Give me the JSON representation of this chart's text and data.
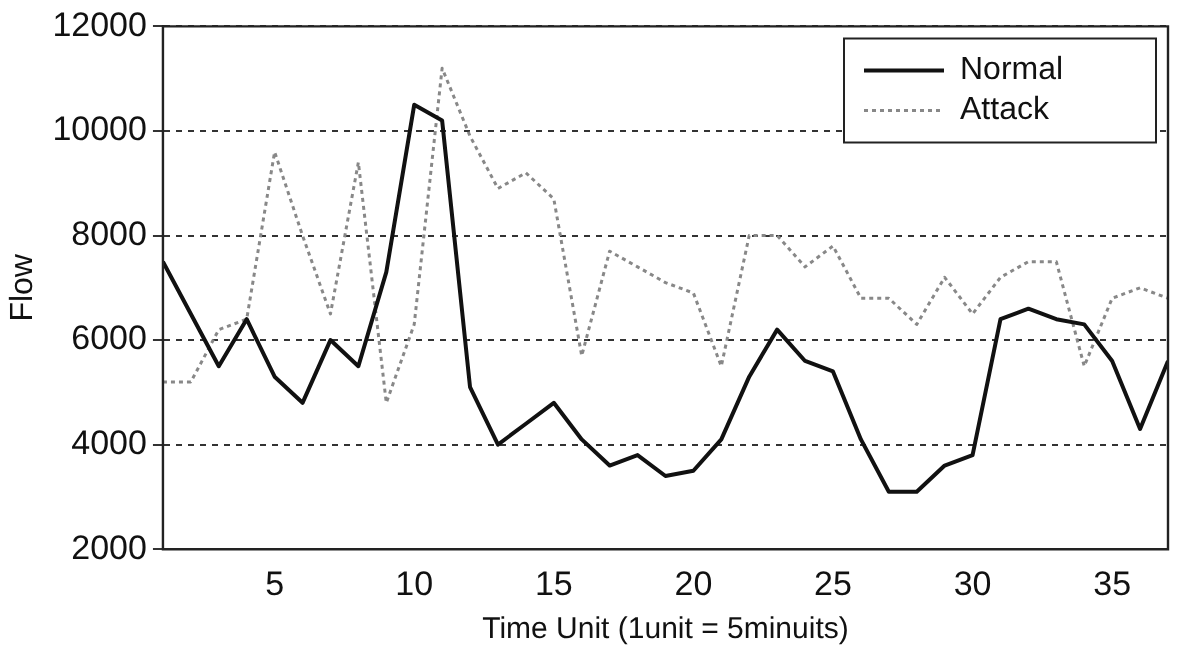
{
  "chart_data": {
    "type": "line",
    "xlabel": "Time Unit (1unit = 5minuits)",
    "ylabel": "Flow",
    "x": [
      1,
      2,
      3,
      4,
      5,
      6,
      7,
      8,
      9,
      10,
      11,
      12,
      13,
      14,
      15,
      16,
      17,
      18,
      19,
      20,
      21,
      22,
      23,
      24,
      25,
      26,
      27,
      28,
      29,
      30,
      31,
      32,
      33,
      34,
      35,
      36,
      37
    ],
    "series": [
      {
        "name": "Normal",
        "color": "#111111",
        "line_style": "solid",
        "values": [
          7500,
          6500,
          5500,
          6400,
          5300,
          4800,
          6000,
          5500,
          7300,
          10500,
          10200,
          5100,
          4000,
          4400,
          4800,
          4100,
          3600,
          3800,
          3400,
          3500,
          4100,
          5300,
          6200,
          5600,
          5400,
          4100,
          3100,
          3100,
          3600,
          3800,
          6400,
          6600,
          6400,
          6300,
          5600,
          4300,
          5600
        ]
      },
      {
        "name": "Attack",
        "color": "#888888",
        "line_style": "dotted",
        "values": [
          5200,
          5200,
          6200,
          6400,
          9600,
          8000,
          6500,
          9400,
          4800,
          6300,
          11200,
          9900,
          8900,
          9200,
          8700,
          5700,
          7700,
          7400,
          7100,
          6900,
          5500,
          8000,
          8000,
          7400,
          7800,
          6800,
          6800,
          6300,
          7200,
          6500,
          7200,
          7500,
          7500,
          5500,
          6800,
          7000,
          6800
        ]
      }
    ],
    "xlim": [
      1,
      37
    ],
    "xticks": [
      5,
      10,
      15,
      20,
      25,
      30,
      35
    ],
    "ylim": [
      2000,
      12000
    ],
    "yticks": [
      2000,
      4000,
      6000,
      8000,
      10000,
      12000
    ],
    "grid": "y",
    "legend": "top right",
    "marker": "none"
  }
}
